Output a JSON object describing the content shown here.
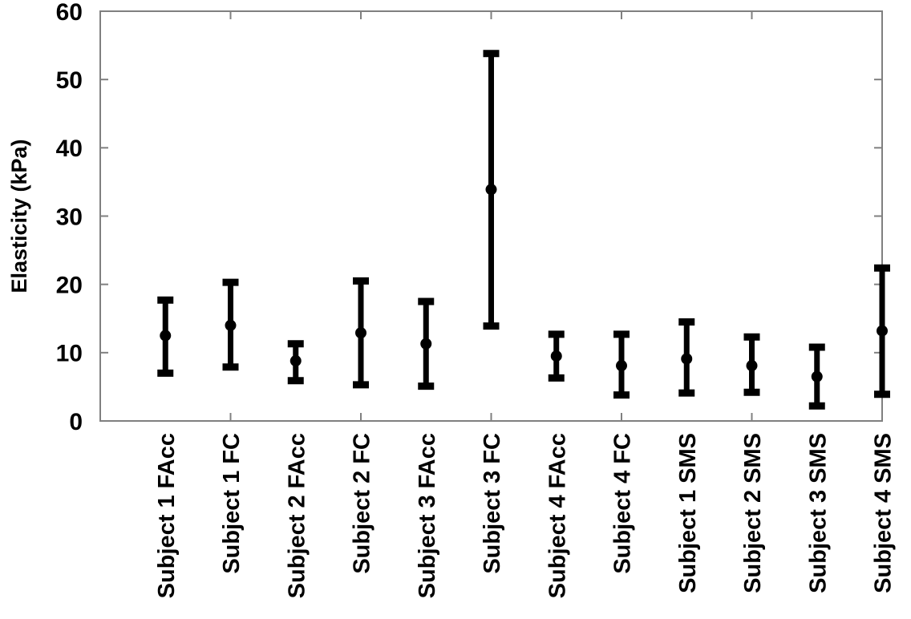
{
  "figure": {
    "background": "#ffffff"
  },
  "chart_data": {
    "type": "errorbar",
    "title": "",
    "xlabel": "",
    "ylabel": "Elasticity (kPa)",
    "ylim": [
      0,
      60
    ],
    "yticks": [
      0,
      10,
      20,
      30,
      40,
      50,
      60
    ],
    "grid": false,
    "box": true,
    "legend": "none",
    "x_tick_label_rotation_deg": 90,
    "x_ticks_every": 2,
    "categories": [
      "Subject 1 FAcc",
      "Subject 1 FC",
      "Subject 2 FAcc",
      "Subject 2 FC",
      "Subject 3 FAcc",
      "Subject 3 FC",
      "Subject 4 FAcc",
      "Subject 4 FC",
      "Subject 1 SMS",
      "Subject 2 SMS",
      "Subject 3 SMS",
      "Subject 4 SMS"
    ],
    "series": [
      {
        "name": "Elasticity",
        "marker": "dot",
        "means": [
          12.5,
          14.0,
          8.8,
          12.9,
          11.3,
          33.9,
          9.5,
          8.1,
          9.1,
          8.1,
          6.5,
          13.2
        ],
        "lower": [
          7.0,
          7.9,
          5.9,
          5.3,
          5.1,
          13.9,
          6.3,
          3.8,
          4.1,
          4.2,
          2.2,
          3.9
        ],
        "upper": [
          17.7,
          20.3,
          11.3,
          20.5,
          17.5,
          53.8,
          12.7,
          12.7,
          14.5,
          12.3,
          10.8,
          22.4
        ]
      }
    ],
    "colors": {
      "bar": "#000000",
      "axis": "#808080",
      "text": "#000000",
      "background": "#ffffff"
    }
  }
}
